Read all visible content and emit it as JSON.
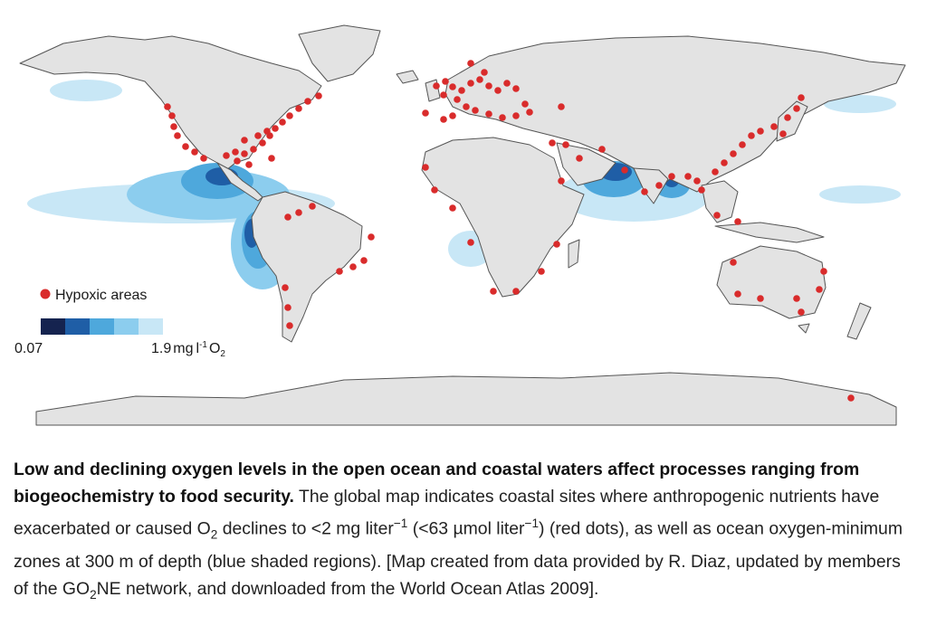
{
  "legend": {
    "hypoxic_label": "Hypoxic areas",
    "scale_min": "0.07",
    "scale_max_value": "1.9",
    "scale_max_unit": "mg",
    "scale_unit_sup": "-1",
    "scale_gas": "O",
    "scale_gas_sub": "2",
    "color_steps": [
      "#15234f",
      "#1f5ea6",
      "#4ea8dc",
      "#8ccdee",
      "#c8e7f6"
    ],
    "hypoxic_color": "#d92b2b"
  },
  "colors": {
    "land": "#e3e3e3",
    "coast": "#555555",
    "ocean": "#ffffff"
  },
  "caption": {
    "bold": "Low and declining oxygen levels in the open ocean and coastal waters affect processes ranging from biogeochemistry to food security.",
    "p1": " The global map indicates coastal sites where anthropogenic nutrients have exacerbated or caused O",
    "sub1": "2",
    "p2": " declines to <2 mg liter",
    "sup1": "−1",
    "p3": " (<63 µmol liter",
    "sup2": "−1",
    "p4": ") (red dots), as well as ocean oxygen-minimum zones at 300 m of depth (blue shaded regions). [Map created from data provided by R. Diaz, updated by members of the GO",
    "sub2": "2",
    "p5": "NE network, and downloaded from the World Ocean Atlas 2009]."
  }
}
